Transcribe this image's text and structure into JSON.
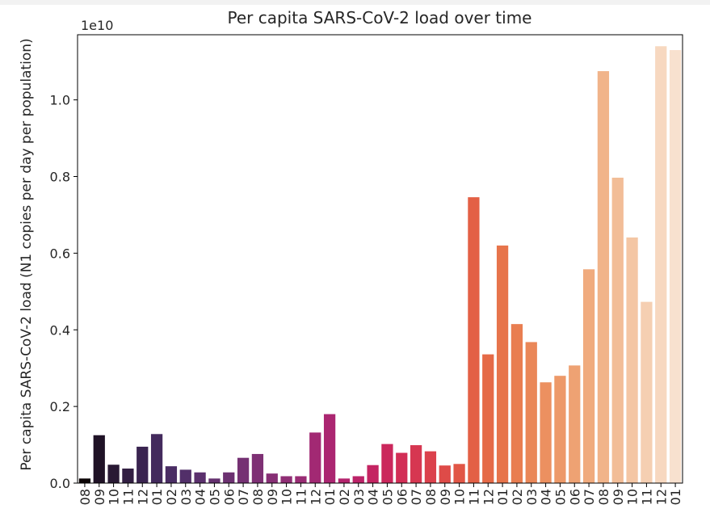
{
  "chart_data": {
    "type": "bar",
    "title": "Per capita SARS-CoV-2 load over time",
    "ylabel": "Per capita SARS-CoV-2 load (N1 copies per day per population)",
    "xlabel": "",
    "offset_label": "1e10",
    "ylim": [
      0,
      1.17
    ],
    "yticks": [
      "0.0",
      "0.2",
      "0.4",
      "0.6",
      "0.8",
      "1.0"
    ],
    "categories": [
      "08",
      "09",
      "10",
      "11",
      "12",
      "01",
      "02",
      "03",
      "04",
      "05",
      "06",
      "07",
      "08",
      "09",
      "10",
      "11",
      "12",
      "01",
      "02",
      "03",
      "04",
      "05",
      "06",
      "07",
      "08",
      "09",
      "10",
      "11",
      "12",
      "01",
      "02",
      "03",
      "04",
      "05",
      "06",
      "07",
      "08",
      "09",
      "10",
      "11",
      "12",
      "01"
    ],
    "values": [
      0.012,
      0.125,
      0.048,
      0.038,
      0.095,
      0.128,
      0.044,
      0.035,
      0.028,
      0.012,
      0.028,
      0.066,
      0.076,
      0.025,
      0.018,
      0.018,
      0.132,
      0.18,
      0.012,
      0.018,
      0.047,
      0.102,
      0.079,
      0.099,
      0.083,
      0.046,
      0.05,
      0.746,
      0.336,
      0.62,
      0.415,
      0.368,
      0.263,
      0.28,
      0.307,
      0.558,
      1.075,
      0.797,
      0.641,
      0.473,
      1.14,
      1.13
    ],
    "colors": [
      "#0b0405",
      "#1f1226",
      "#291934",
      "#321f42",
      "#3a2450",
      "#432a5d",
      "#4a2d64",
      "#522f69",
      "#5b306d",
      "#64316f",
      "#6c3171",
      "#753173",
      "#7e3074",
      "#872f75",
      "#902e75",
      "#992c74",
      "#a22973",
      "#ab2671",
      "#b4246d",
      "#bc2368",
      "#c42462",
      "#cb275c",
      "#d22e56",
      "#d63751",
      "#db414c",
      "#de4b48",
      "#e15646",
      "#e36045",
      "#e56a47",
      "#e7744b",
      "#e97e51",
      "#ea8758",
      "#ec9060",
      "#ed9969",
      "#eea273",
      "#f0ab7e",
      "#f1b48a",
      "#f2bd97",
      "#f4c6a4",
      "#f5cfb2",
      "#f7d8c0",
      "#f8e1cf"
    ]
  }
}
